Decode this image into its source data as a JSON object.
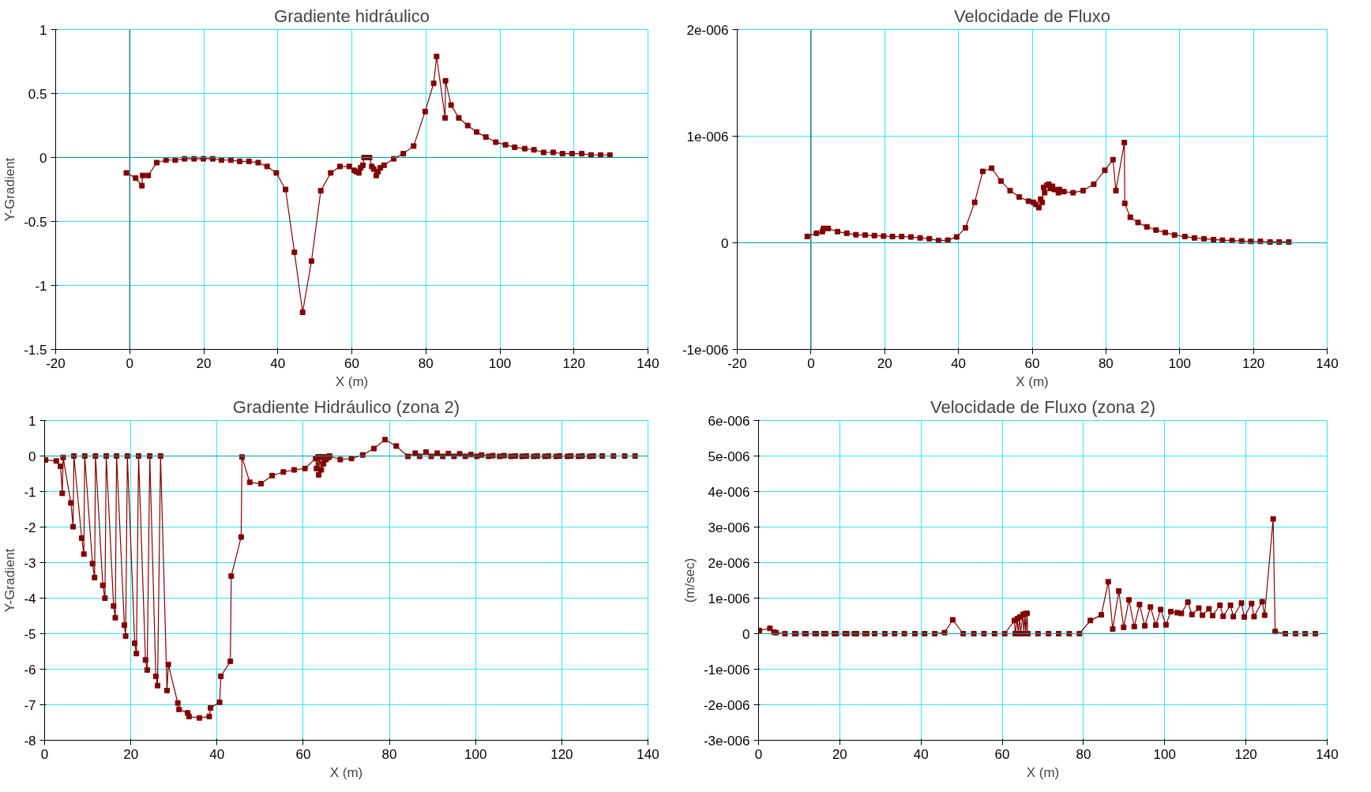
{
  "chart_data": [
    {
      "type": "line",
      "title": "Gradiente hidráulico",
      "xlabel": "X (m)",
      "ylabel": "Y-Gradient",
      "xlim": [
        -20,
        140
      ],
      "ylim": [
        -1.5,
        1
      ],
      "xticks": [
        -20,
        0,
        20,
        40,
        60,
        80,
        100,
        120,
        140
      ],
      "yticks": [
        1,
        0.5,
        0,
        -0.5,
        -1,
        -1.5
      ],
      "grid": true,
      "marker": "square",
      "line_style": "solid",
      "ref_lines": [
        {
          "axis": "x",
          "value": 0,
          "color": "#006a6a"
        },
        {
          "axis": "y",
          "value": 0,
          "color": "#00a0a0"
        }
      ],
      "series": [
        {
          "color": "#800000",
          "x": [
            -0.9,
            1.6,
            3.3,
            3.5,
            5.0,
            7.3,
            9.8,
            12.3,
            14.8,
            17.4,
            19.9,
            22.4,
            24.8,
            27.3,
            29.7,
            32.2,
            34.7,
            37.1,
            39.6,
            42.1,
            44.5,
            46.7,
            49.1,
            51.6,
            54.3,
            56.8,
            59.3,
            60.6,
            61.2,
            61.9,
            62.4,
            63.0,
            63.3,
            64.1,
            64.8,
            65.4,
            65.9,
            66.6,
            67.1,
            67.7,
            68.7,
            71.3,
            73.9,
            76.7,
            79.8,
            82.1,
            82.9,
            85.2,
            85.3,
            86.8,
            88.9,
            91.3,
            93.7,
            96.2,
            98.9,
            101.5,
            104.0,
            106.7,
            109.2,
            111.8,
            114.4,
            116.9,
            119.5,
            122.1,
            124.6,
            127.2,
            129.7
          ],
          "values": [
            -0.12,
            -0.16,
            -0.22,
            -0.14,
            -0.14,
            -0.04,
            -0.02,
            -0.02,
            -0.01,
            -0.01,
            -0.01,
            -0.01,
            -0.02,
            -0.02,
            -0.03,
            -0.03,
            -0.04,
            -0.07,
            -0.12,
            -0.25,
            -0.74,
            -1.21,
            -0.81,
            -0.26,
            -0.12,
            -0.07,
            -0.07,
            -0.1,
            -0.11,
            -0.12,
            -0.08,
            -0.06,
            0,
            0,
            0,
            -0.07,
            -0.09,
            -0.14,
            -0.11,
            -0.08,
            -0.06,
            -0.01,
            0.03,
            0.09,
            0.36,
            0.58,
            0.79,
            0.31,
            0.6,
            0.41,
            0.31,
            0.25,
            0.2,
            0.16,
            0.12,
            0.1,
            0.08,
            0.07,
            0.06,
            0.04,
            0.04,
            0.03,
            0.03,
            0.03,
            0.02,
            0.02,
            0.02
          ]
        }
      ]
    },
    {
      "type": "line",
      "title": "Velocidade de Fluxo",
      "xlabel": "X (m)",
      "xlim": [
        -20,
        140
      ],
      "ylim": [
        -1e-06,
        2e-06
      ],
      "xticks": [
        -20,
        0,
        20,
        40,
        60,
        80,
        100,
        120,
        140
      ],
      "yticks": [
        {
          "value": 2e-06,
          "label": "2e-006"
        },
        {
          "value": 1e-06,
          "label": "1e-006"
        },
        0,
        {
          "value": -1e-06,
          "label": "-1e-006"
        }
      ],
      "grid": true,
      "marker": "square",
      "line_style": "solid",
      "ref_lines": [
        {
          "axis": "x",
          "value": 0,
          "color": "#006a6a"
        },
        {
          "axis": "y",
          "value": 0,
          "color": "#00a0a0"
        }
      ],
      "series": [
        {
          "color": "#800000",
          "x": [
            -1.0,
            1.5,
            3.1,
            3.4,
            4.7,
            7.2,
            9.7,
            12.2,
            14.7,
            17.2,
            19.7,
            22.1,
            24.6,
            27.1,
            29.6,
            32.1,
            34.6,
            37.1,
            39.5,
            41.9,
            44.4,
            46.6,
            49.0,
            51.5,
            54.0,
            56.5,
            59.0,
            60.3,
            61.0,
            61.8,
            62.3,
            62.7,
            63.1,
            63.4,
            64.0,
            64.5,
            64.9,
            65.5,
            66.0,
            67.1,
            67.4,
            68.6,
            71.1,
            73.8,
            76.7,
            79.7,
            81.9,
            82.7,
            85.0,
            85.1,
            86.6,
            88.7,
            91.1,
            93.6,
            96.1,
            98.6,
            101.4,
            104.0,
            106.6,
            109.2,
            111.6,
            114.2,
            116.8,
            119.3,
            121.9,
            124.5,
            127.0,
            129.6
          ],
          "values": [
            6e-08,
            9e-08,
            1.05e-07,
            1.35e-07,
            1.35e-07,
            1.05e-07,
            9e-08,
            7.6e-08,
            7.2e-08,
            6.8e-08,
            6.3e-08,
            5.9e-08,
            5.9e-08,
            5.5e-08,
            4.6e-08,
            3.8e-08,
            2.1e-08,
            2.5e-08,
            5.5e-08,
            1.4e-07,
            3.8e-07,
            6.7e-07,
            7e-07,
            5.8e-07,
            4.9e-07,
            4.3e-07,
            3.9e-07,
            3.8e-07,
            3.6e-07,
            3.3e-07,
            4.1e-07,
            3.8e-07,
            5.2e-07,
            4.7e-07,
            5.4e-07,
            5.5e-07,
            5.1e-07,
            5.3e-07,
            5e-07,
            4.7e-07,
            5e-07,
            4.8e-07,
            4.7e-07,
            4.9e-07,
            5.5e-07,
            6.8e-07,
            7.8e-07,
            4.9e-07,
            9.4e-07,
            3.7e-07,
            2.4e-07,
            1.9e-07,
            1.5e-07,
            1.2e-07,
            9.7e-08,
            7.2e-08,
            5.9e-08,
            4.6e-08,
            3.8e-08,
            3e-08,
            2.5e-08,
            2.1e-08,
            1.7e-08,
            1.3e-08,
            1.3e-08,
            8e-09,
            8e-09,
            8e-09
          ]
        }
      ]
    },
    {
      "type": "line",
      "title": "Gradiente Hidráulico (zona 2)",
      "xlabel": "X (m)",
      "ylabel": "Y-Gradient",
      "xlim": [
        0,
        140
      ],
      "ylim": [
        -8,
        1
      ],
      "xticks": [
        0,
        20,
        40,
        60,
        80,
        100,
        120,
        140
      ],
      "yticks": [
        1,
        0,
        -1,
        -2,
        -3,
        -4,
        -5,
        -6,
        -7,
        -8
      ],
      "grid": true,
      "marker": "square",
      "line_style": "solid",
      "ref_lines": [
        {
          "axis": "y",
          "value": 0,
          "color": "#00a0a0"
        }
      ],
      "series": [
        {
          "color": "#800000",
          "x": [
            0.2,
            2.7,
            3.7,
            4.1,
            4.3,
            6.1,
            6.6,
            6.8,
            8.6,
            9.1,
            9.3,
            11.1,
            11.6,
            11.8,
            13.5,
            14.0,
            14.3,
            16.0,
            16.4,
            16.7,
            18.5,
            18.8,
            19.2,
            20.9,
            21.3,
            21.8,
            23.4,
            23.8,
            24.4,
            25.8,
            26.2,
            26.9,
            28.4,
            28.7,
            30.9,
            31.2,
            33.2,
            33.5,
            35.9,
            38.2,
            38.5,
            40.6,
            40.9,
            43.1,
            43.3,
            45.6,
            45.8,
            47.6,
            50.2,
            52.8,
            55.4,
            57.9,
            60.4,
            62.9,
            63.1,
            63.4,
            63.6,
            63.8,
            64.2,
            64.5,
            64.7,
            65.0,
            65.3,
            65.6,
            65.9,
            66.1,
            68.6,
            71.2,
            73.8,
            76.4,
            79.0,
            81.6,
            84.3,
            86.0,
            87.0,
            88.5,
            89.7,
            91.1,
            92.4,
            93.7,
            95.0,
            96.3,
            97.6,
            98.9,
            100.3,
            101.4,
            103.0,
            104.0,
            105.6,
            106.6,
            108.2,
            109.2,
            110.8,
            111.8,
            113.5,
            114.3,
            116.1,
            116.9,
            118.7,
            119.5,
            121.3,
            122.1,
            123.9,
            124.7,
            126.5,
            127.3,
            129.4,
            132.0,
            134.6,
            137.0
          ],
          "values": [
            -0.11,
            -0.14,
            -0.29,
            -1.05,
            -0.04,
            -1.32,
            -1.99,
            0,
            -2.31,
            -2.76,
            0,
            -3.03,
            -3.42,
            0,
            -3.64,
            -4.0,
            0,
            -4.22,
            -4.55,
            0,
            -4.76,
            -5.07,
            0,
            -5.27,
            -5.56,
            0,
            -5.74,
            -6.02,
            0,
            -6.2,
            -6.46,
            0,
            -6.6,
            -5.87,
            -6.95,
            -7.13,
            -7.23,
            -7.33,
            -7.37,
            -7.33,
            -7.09,
            -6.93,
            -6.2,
            -5.78,
            -3.38,
            -2.28,
            -0.03,
            -0.74,
            -0.78,
            -0.55,
            -0.45,
            -0.39,
            -0.35,
            -0.07,
            -0.35,
            -0.03,
            -0.53,
            -0.03,
            -0.39,
            -0.03,
            -0.22,
            -0.03,
            -0.1,
            -0.03,
            -0.04,
            0,
            -0.1,
            -0.07,
            0.03,
            0.21,
            0.46,
            0.28,
            -0.01,
            0.08,
            -0.01,
            0.11,
            -0.01,
            0.08,
            -0.01,
            0.07,
            -0.01,
            0.06,
            -0.01,
            0.04,
            -0.01,
            0.03,
            -0.01,
            0.01,
            -0.01,
            0.01,
            -0.01,
            0,
            -0.01,
            0,
            -0.01,
            0,
            -0.01,
            0,
            -0.01,
            0,
            -0.01,
            0,
            -0.01,
            0,
            -0.01,
            0,
            0,
            0,
            0,
            0
          ]
        }
      ]
    },
    {
      "type": "line",
      "title": "Velocidade de Fluxo (zona 2)",
      "xlabel": "X (m)",
      "ylabel": "(m/sec)",
      "xlim": [
        0,
        140
      ],
      "ylim": [
        -3e-06,
        6e-06
      ],
      "xticks": [
        0,
        20,
        40,
        60,
        80,
        100,
        120,
        140
      ],
      "yticks": [
        {
          "value": 6e-06,
          "label": "6e-006"
        },
        {
          "value": 5e-06,
          "label": "5e-006"
        },
        {
          "value": 4e-06,
          "label": "4e-006"
        },
        {
          "value": 3e-06,
          "label": "3e-006"
        },
        {
          "value": 2e-06,
          "label": "2e-006"
        },
        {
          "value": 1e-06,
          "label": "1e-006"
        },
        0,
        {
          "value": -1e-06,
          "label": "-1e-006"
        },
        {
          "value": -2e-06,
          "label": "-2e-006"
        },
        {
          "value": -3e-06,
          "label": "-3e-006"
        }
      ],
      "grid": true,
      "marker": "square",
      "line_style": "solid",
      "ref_lines": [
        {
          "axis": "y",
          "value": 0,
          "color": "#00a0a0"
        }
      ],
      "series": [
        {
          "color": "#800000",
          "x": [
            0.2,
            2.8,
            3.8,
            4.3,
            6.5,
            8.9,
            9.2,
            11.4,
            11.7,
            13.9,
            14.2,
            16.1,
            16.5,
            18.7,
            19.1,
            21.3,
            21.7,
            23.6,
            24.1,
            26.2,
            26.6,
            28.6,
            31.1,
            33.5,
            35.9,
            38.5,
            40.9,
            43.4,
            45.8,
            47.8,
            50.4,
            53.0,
            55.5,
            58.1,
            60.6,
            63.0,
            63.2,
            63.7,
            63.9,
            64.3,
            64.5,
            65.1,
            65.3,
            65.6,
            65.8,
            66.1,
            66.3,
            68.8,
            71.4,
            73.9,
            76.5,
            79.0,
            81.7,
            84.4,
            86.1,
            87.2,
            88.7,
            89.9,
            91.2,
            92.5,
            93.8,
            95.1,
            96.5,
            97.8,
            99.0,
            100.3,
            101.5,
            103.1,
            104.1,
            105.7,
            106.7,
            108.4,
            109.3,
            110.9,
            111.8,
            113.6,
            114.4,
            116.2,
            116.9,
            118.9,
            119.6,
            121.4,
            122.0,
            124.0,
            124.6,
            126.7,
            127.2,
            129.7,
            132.2,
            134.6,
            137.1
          ],
          "values": [
            9e-08,
            1.5e-07,
            4e-08,
            3e-08,
            0,
            0,
            0,
            0,
            0,
            0,
            0,
            0,
            0,
            0,
            0,
            0,
            0,
            0,
            0,
            0,
            0,
            0,
            0,
            0,
            0,
            0,
            0,
            0,
            3e-08,
            3.9e-07,
            0,
            0,
            0,
            0,
            0,
            3.7e-07,
            0,
            4.2e-07,
            0,
            4.7e-07,
            0,
            5.4e-07,
            0,
            5.6e-07,
            0,
            5.7e-07,
            0,
            0,
            0,
            0,
            0,
            0,
            3.7e-07,
            5.3e-07,
            1.46e-06,
            1.3e-07,
            1.2e-06,
            1.8e-07,
            9.5e-07,
            2e-07,
            8.2e-07,
            2.2e-07,
            7.5e-07,
            2.4e-07,
            6.8e-07,
            2.5e-07,
            6.2e-07,
            5.9e-07,
            5.7e-07,
            8.9e-07,
            5.4e-07,
            7.2e-07,
            5.2e-07,
            7e-07,
            5.1e-07,
            8e-07,
            4.9e-07,
            8e-07,
            4.8e-07,
            8.6e-07,
            4.7e-07,
            8.5e-07,
            4.8e-07,
            9e-07,
            5.2e-07,
            3.23e-06,
            6e-08,
            0,
            0,
            0,
            0
          ]
        }
      ]
    }
  ]
}
